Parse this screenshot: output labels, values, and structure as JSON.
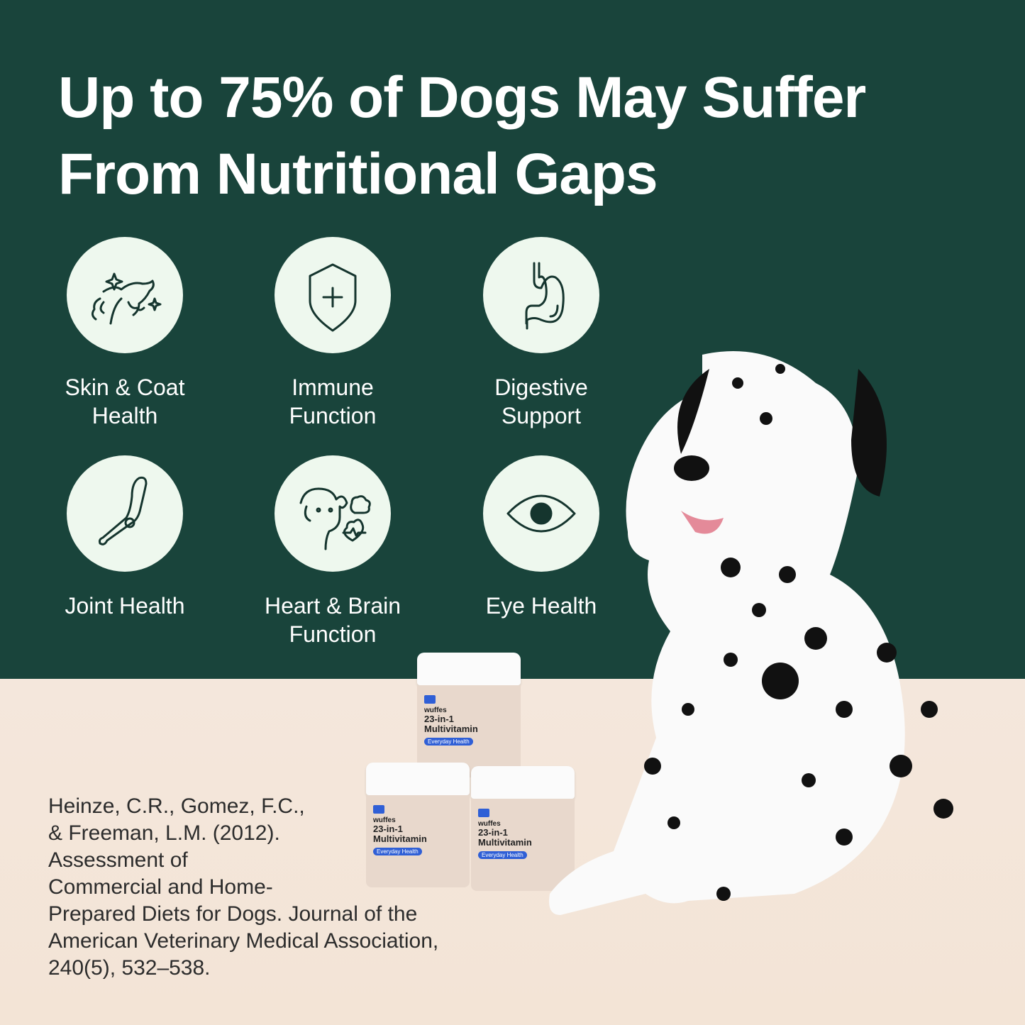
{
  "headline": {
    "line1": "Up to 75% of Dogs May Suffer",
    "line2": "From Nutritional Gaps"
  },
  "benefits": [
    {
      "icon": "dog-sparkle-icon",
      "line1": "Skin & Coat",
      "line2": "Health"
    },
    {
      "icon": "shield-plus-icon",
      "line1": "Immune",
      "line2": "Function"
    },
    {
      "icon": "stomach-icon",
      "line1": "Digestive",
      "line2": "Support"
    },
    {
      "icon": "bone-joint-icon",
      "line1": "Joint Health",
      "line2": ""
    },
    {
      "icon": "dog-heart-brain-icon",
      "line1": "Heart & Brain",
      "line2": "Function"
    },
    {
      "icon": "eye-icon",
      "line1": "Eye Health",
      "line2": ""
    }
  ],
  "product": {
    "brand": "wuffes",
    "name_line1": "23-in-1",
    "name_line2": "Multivitamin",
    "tag": "Everyday Health"
  },
  "citation": [
    "Heinze, C.R., Gomez, F.C.,",
    "& Freeman, L.M. (2012).",
    "Assessment of",
    "Commercial and Home-",
    "Prepared Diets for Dogs. Journal of the",
    "American Veterinary Medical Association,",
    "240(5), 532–538."
  ],
  "colors": {
    "background_green": "#19443b",
    "icon_circle": "#eef8ee",
    "floor": "#f4e7dc",
    "accent_blue": "#2f5fd6"
  }
}
